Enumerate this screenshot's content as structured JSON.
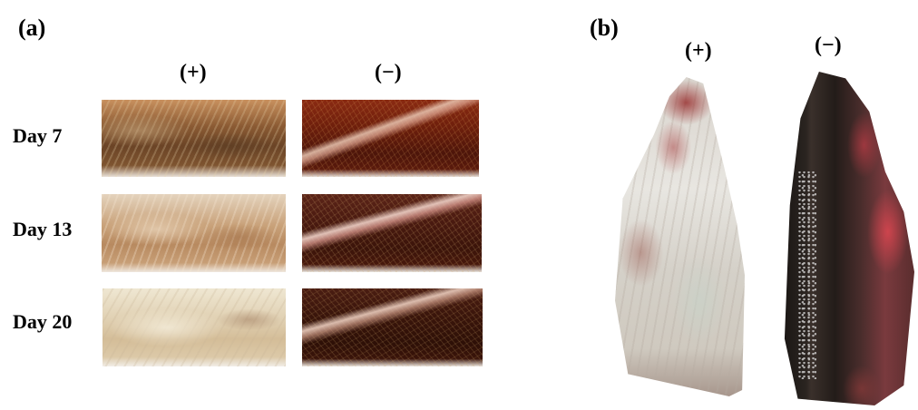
{
  "panel_a": {
    "label": "(a)",
    "columns": {
      "plus": "(+)",
      "minus": "(−)"
    },
    "rows": [
      {
        "label": "Day 7"
      },
      {
        "label": "Day 13"
      },
      {
        "label": "Day 20"
      }
    ]
  },
  "panel_b": {
    "label": "(b)",
    "columns": {
      "plus": "(+)",
      "minus": "(−)"
    }
  }
}
